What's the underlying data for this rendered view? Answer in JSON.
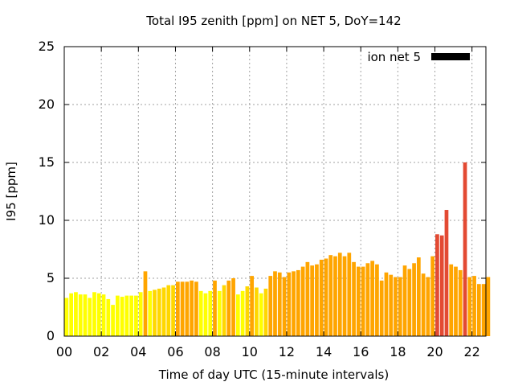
{
  "chart_data": {
    "type": "bar",
    "title": "Total I95 zenith [ppm] on NET 5, DoY=142",
    "xlabel": "Time of day UTC (15-minute intervals)",
    "ylabel": "I95 [ppm]",
    "xlim": [
      0,
      22.75
    ],
    "ylim": [
      0,
      25
    ],
    "x_ticks": [
      "00",
      "02",
      "04",
      "06",
      "08",
      "10",
      "12",
      "14",
      "16",
      "18",
      "20",
      "22"
    ],
    "y_ticks": [
      "0",
      "5",
      "10",
      "15",
      "20",
      "25"
    ],
    "grid": true,
    "legend": {
      "label": "ion net 5",
      "color": "#000000",
      "position": "top-right"
    },
    "interval_hours": 0.25,
    "values": [
      3.3,
      3.7,
      3.8,
      3.6,
      3.6,
      3.3,
      3.8,
      3.7,
      3.6,
      3.2,
      2.7,
      3.5,
      3.4,
      3.5,
      3.5,
      3.5,
      3.8,
      5.6,
      3.9,
      4.0,
      4.1,
      4.2,
      4.4,
      4.4,
      4.7,
      4.7,
      4.7,
      4.8,
      4.7,
      3.9,
      3.7,
      3.9,
      4.8,
      3.9,
      4.4,
      4.8,
      5.0,
      3.6,
      3.9,
      4.3,
      5.2,
      4.2,
      3.7,
      4.1,
      5.2,
      5.6,
      5.5,
      5.1,
      5.5,
      5.6,
      5.7,
      6.0,
      6.4,
      6.1,
      6.2,
      6.6,
      6.7,
      7.0,
      6.9,
      7.2,
      6.9,
      7.2,
      6.4,
      6.0,
      6.0,
      6.3,
      6.5,
      6.2,
      4.8,
      5.5,
      5.3,
      5.1,
      5.1,
      6.1,
      5.8,
      6.3,
      6.8,
      5.4,
      5.1,
      6.9,
      8.8,
      8.7,
      10.9,
      6.2,
      6.0,
      5.7,
      15.0,
      5.1,
      5.2,
      4.5,
      4.5,
      5.1
    ],
    "bar_colors": {
      "low": "#ffff00",
      "mid": "#ffd700",
      "high": "#ffa500",
      "very_high": "#e34a33"
    }
  }
}
